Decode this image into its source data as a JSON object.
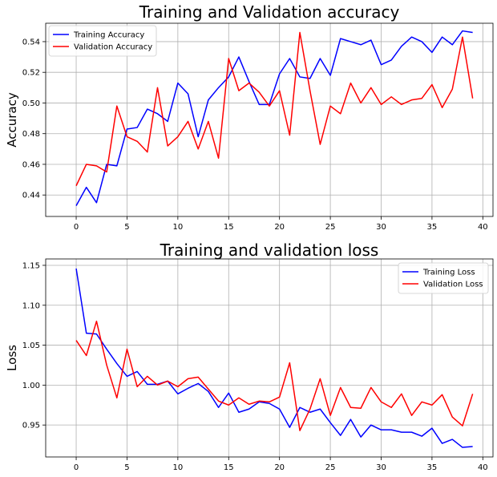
{
  "chart_data": [
    {
      "type": "line",
      "title": "Training and Validation accuracy",
      "xlabel": "",
      "ylabel": "Accuracy",
      "xlim": [
        -3,
        41
      ],
      "ylim": [
        0.426,
        0.552
      ],
      "xticks": [
        0,
        5,
        10,
        15,
        20,
        25,
        30,
        35,
        40
      ],
      "yticks": [
        0.44,
        0.46,
        0.48,
        0.5,
        0.52,
        0.54
      ],
      "grid": true,
      "legend": "top-left",
      "x": [
        0,
        1,
        2,
        3,
        4,
        5,
        6,
        7,
        8,
        9,
        10,
        11,
        12,
        13,
        14,
        15,
        16,
        17,
        18,
        19,
        20,
        21,
        22,
        23,
        24,
        25,
        26,
        27,
        28,
        29,
        30,
        31,
        32,
        33,
        34,
        35,
        36,
        37,
        38,
        39
      ],
      "series": [
        {
          "name": "Training Accuracy",
          "color": "#0000ff",
          "values": [
            0.433,
            0.445,
            0.435,
            0.46,
            0.459,
            0.483,
            0.484,
            0.496,
            0.493,
            0.488,
            0.513,
            0.506,
            0.478,
            0.502,
            0.51,
            0.517,
            0.53,
            0.514,
            0.499,
            0.499,
            0.519,
            0.529,
            0.517,
            0.516,
            0.529,
            0.518,
            0.542,
            0.54,
            0.538,
            0.541,
            0.525,
            0.528,
            0.537,
            0.543,
            0.54,
            0.533,
            0.543,
            0.538,
            0.547,
            0.546
          ]
        },
        {
          "name": "Validation Accuracy",
          "color": "#ff0000",
          "values": [
            0.446,
            0.46,
            0.459,
            0.455,
            0.498,
            0.478,
            0.475,
            0.468,
            0.51,
            0.472,
            0.478,
            0.488,
            0.47,
            0.488,
            0.464,
            0.529,
            0.508,
            0.513,
            0.507,
            0.498,
            0.508,
            0.479,
            0.546,
            0.508,
            0.473,
            0.498,
            0.493,
            0.513,
            0.5,
            0.51,
            0.499,
            0.504,
            0.499,
            0.502,
            0.503,
            0.512,
            0.497,
            0.509,
            0.543,
            0.503
          ]
        }
      ]
    },
    {
      "type": "line",
      "title": "Training and validation loss",
      "xlabel": "",
      "ylabel": "Loss",
      "xlim": [
        -3,
        41
      ],
      "ylim": [
        0.91,
        1.158
      ],
      "xticks": [
        0,
        5,
        10,
        15,
        20,
        25,
        30,
        35,
        40
      ],
      "yticks": [
        0.95,
        1.0,
        1.05,
        1.1,
        1.15
      ],
      "grid": true,
      "legend": "top-right",
      "x": [
        0,
        1,
        2,
        3,
        4,
        5,
        6,
        7,
        8,
        9,
        10,
        11,
        12,
        13,
        14,
        15,
        16,
        17,
        18,
        19,
        20,
        21,
        22,
        23,
        24,
        25,
        26,
        27,
        28,
        29,
        30,
        31,
        32,
        33,
        34,
        35,
        36,
        37,
        38,
        39
      ],
      "series": [
        {
          "name": "Training Loss",
          "color": "#0000ff",
          "values": [
            1.146,
            1.065,
            1.064,
            1.045,
            1.027,
            1.011,
            1.017,
            1.001,
            1.001,
            1.005,
            0.989,
            0.996,
            1.002,
            0.992,
            0.972,
            0.99,
            0.966,
            0.97,
            0.979,
            0.977,
            0.97,
            0.947,
            0.972,
            0.966,
            0.97,
            0.953,
            0.937,
            0.957,
            0.935,
            0.95,
            0.944,
            0.944,
            0.941,
            0.941,
            0.936,
            0.946,
            0.927,
            0.932,
            0.922,
            0.923
          ]
        },
        {
          "name": "Validation Loss",
          "color": "#ff0000",
          "values": [
            1.056,
            1.037,
            1.08,
            1.025,
            0.984,
            1.045,
            0.998,
            1.011,
            1.0,
            1.005,
            0.998,
            1.008,
            1.01,
            0.995,
            0.98,
            0.975,
            0.984,
            0.976,
            0.98,
            0.979,
            0.985,
            1.028,
            0.943,
            0.97,
            1.008,
            0.962,
            0.997,
            0.972,
            0.971,
            0.997,
            0.979,
            0.972,
            0.989,
            0.962,
            0.979,
            0.975,
            0.988,
            0.96,
            0.949,
            0.989
          ]
        }
      ]
    }
  ]
}
